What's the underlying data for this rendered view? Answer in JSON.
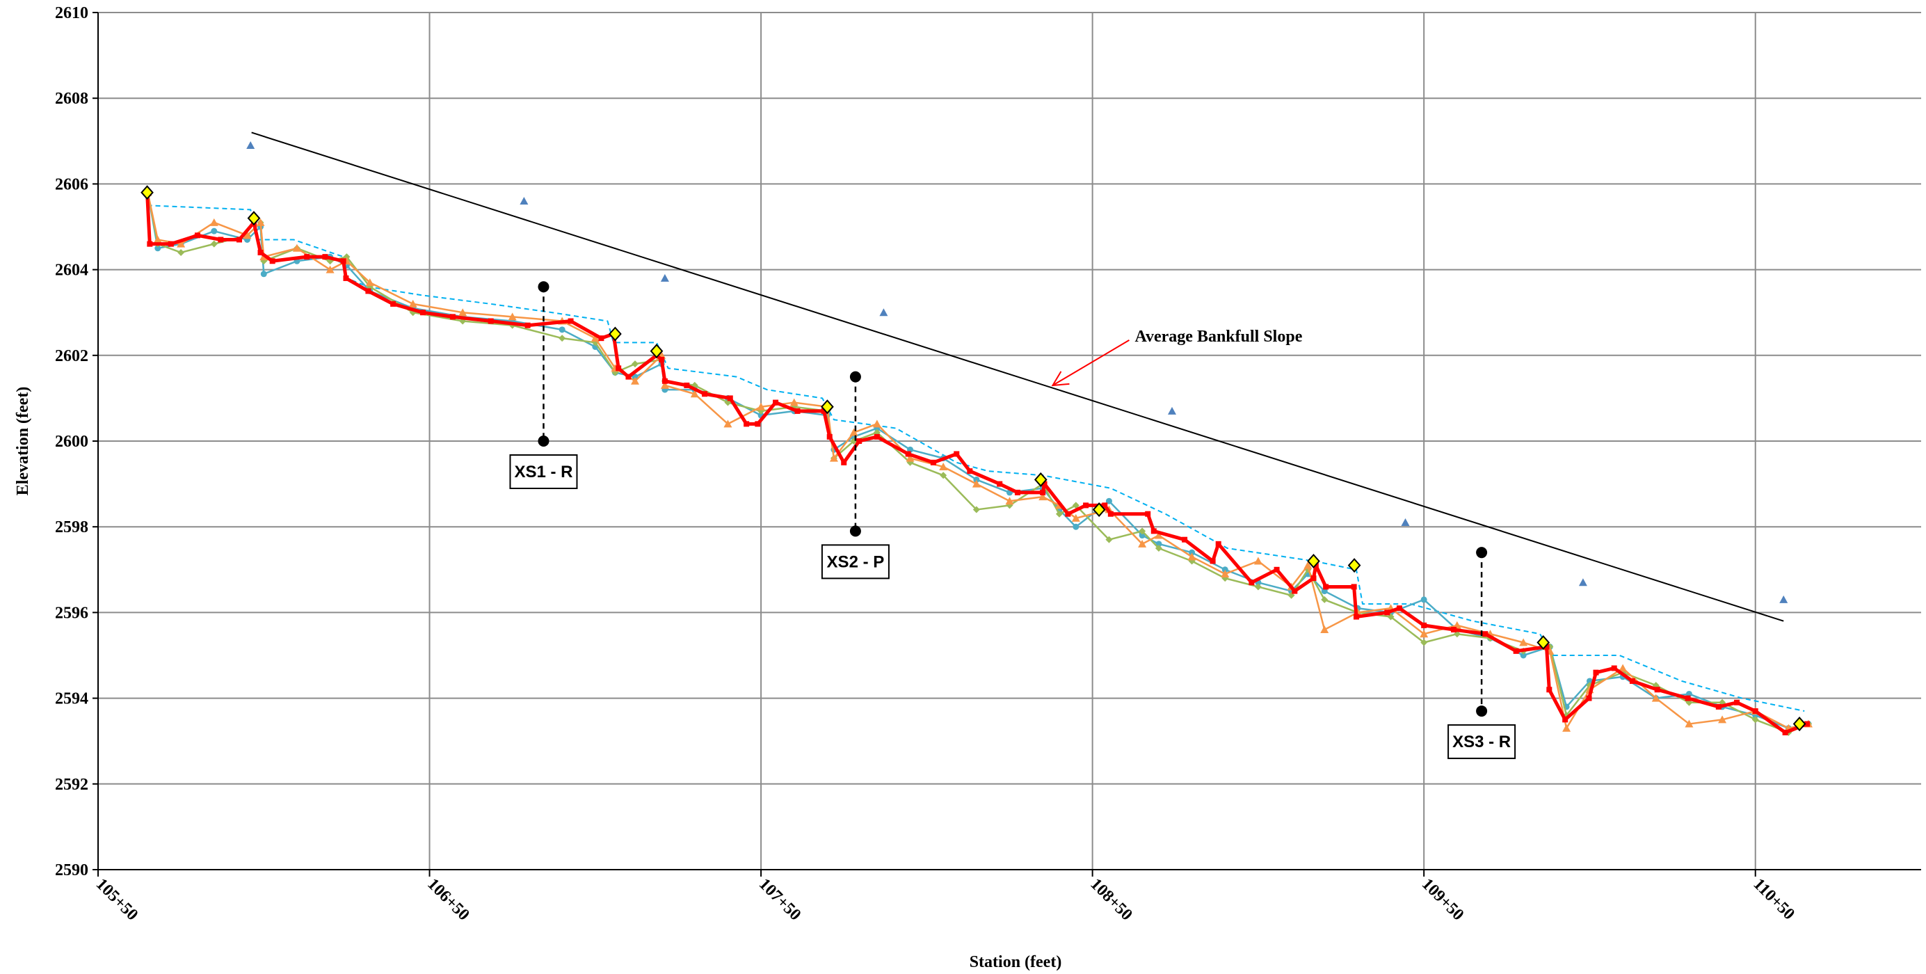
{
  "chart_data": {
    "type": "line",
    "x_label": "Station (feet)",
    "y_label": "Elevation (feet)",
    "xlim": [
      10550,
      11100
    ],
    "ylim": [
      2590,
      2610
    ],
    "xticks": [
      {
        "value": 10550,
        "label": "105+50"
      },
      {
        "value": 10650,
        "label": "106+50"
      },
      {
        "value": 10750,
        "label": "107+50"
      },
      {
        "value": 10850,
        "label": "108+50"
      },
      {
        "value": 10950,
        "label": "109+50"
      },
      {
        "value": 11050,
        "label": "110+50"
      }
    ],
    "yticks": [
      2590,
      2592,
      2594,
      2596,
      2598,
      2600,
      2602,
      2604,
      2606,
      2608,
      2610
    ],
    "grid": true,
    "series": [
      {
        "color": "#00b0f0",
        "dashed": true,
        "marker": "none",
        "line_width": 2,
        "x": [
          10564.8,
          10596,
          10598,
          10609,
          10624,
          10625,
          10631.5,
          10648,
          10668.5,
          10687,
          10703.7,
          10705.5,
          10718.5,
          10722,
          10742.6,
          10751.8,
          10768.5,
          10772,
          10790.7,
          10809,
          10818.5,
          10835,
          10855.5,
          10872,
          10890.7,
          10916.7,
          10929.6,
          10931.5,
          10946,
          10964.8,
          10985,
          10988.9,
          11009,
          11027.8,
          11046,
          11064.8
        ],
        "values": [
          2605.5,
          2605.4,
          2604.7,
          2604.7,
          2604.3,
          2603.8,
          2603.6,
          2603.4,
          2603.2,
          2603.0,
          2602.8,
          2602.3,
          2602.3,
          2601.7,
          2601.5,
          2601.2,
          2601.0,
          2600.5,
          2600.3,
          2599.5,
          2599.3,
          2599.2,
          2598.9,
          2598.3,
          2597.5,
          2597.2,
          2597.0,
          2596.2,
          2596.2,
          2595.8,
          2595.5,
          2595.0,
          2595.0,
          2594.4,
          2594.0,
          2593.7
        ]
      },
      {
        "color": "#4bacc6",
        "dashed": false,
        "marker": "circle",
        "line_width": 2.5,
        "x": [
          10565,
          10568,
          10575,
          10585,
          10595,
          10599,
          10600,
          10610,
          10620,
          10625,
          10632,
          10645,
          10660,
          10675,
          10690,
          10700,
          10706,
          10712,
          10720,
          10721,
          10730,
          10740,
          10750,
          10760,
          10770,
          10772,
          10778,
          10785,
          10795,
          10805,
          10815,
          10825,
          10835,
          10840,
          10845,
          10855,
          10865,
          10870,
          10880,
          10890,
          10900,
          10910,
          10915,
          10920,
          10930,
          10940,
          10950,
          10960,
          10970,
          10980,
          10988,
          10993,
          11000,
          11010,
          11020,
          11030,
          11040,
          11050,
          11060,
          11066
        ],
        "values": [
          2605.8,
          2604.5,
          2604.6,
          2604.9,
          2604.7,
          2605.0,
          2603.9,
          2604.2,
          2604.3,
          2604.1,
          2603.5,
          2603.1,
          2602.9,
          2602.8,
          2602.6,
          2602.2,
          2601.6,
          2601.5,
          2601.8,
          2601.2,
          2601.2,
          2601.0,
          2600.6,
          2600.7,
          2600.6,
          2599.8,
          2600.1,
          2600.3,
          2599.8,
          2599.6,
          2599.1,
          2598.8,
          2598.9,
          2598.4,
          2598.0,
          2598.6,
          2597.8,
          2597.6,
          2597.4,
          2597.0,
          2596.7,
          2596.5,
          2596.9,
          2596.5,
          2596.1,
          2596.0,
          2596.3,
          2595.6,
          2595.4,
          2595.0,
          2595.2,
          2593.8,
          2594.4,
          2594.5,
          2594.0,
          2594.1,
          2593.8,
          2593.6,
          2593.3,
          2593.4
        ]
      },
      {
        "color": "#9bbb59",
        "dashed": false,
        "marker": "diamond",
        "line_width": 2.5,
        "x": [
          10565,
          10568,
          10575,
          10585,
          10595,
          10599,
          10600,
          10610,
          10620,
          10625,
          10632,
          10645,
          10660,
          10675,
          10690,
          10700,
          10706,
          10712,
          10720,
          10721,
          10730,
          10740,
          10750,
          10760,
          10770,
          10772,
          10778,
          10785,
          10795,
          10805,
          10815,
          10825,
          10835,
          10840,
          10845,
          10855,
          10865,
          10870,
          10880,
          10890,
          10900,
          10910,
          10915,
          10920,
          10930,
          10940,
          10950,
          10960,
          10970,
          10980,
          10988,
          10993,
          11000,
          11010,
          11020,
          11030,
          11040,
          11050,
          11060,
          11066
        ],
        "values": [
          2605.8,
          2604.6,
          2604.4,
          2604.6,
          2604.8,
          2605.1,
          2604.2,
          2604.5,
          2604.2,
          2604.3,
          2603.6,
          2603.0,
          2602.8,
          2602.7,
          2602.4,
          2602.3,
          2601.6,
          2601.8,
          2601.9,
          2601.4,
          2601.3,
          2600.9,
          2600.7,
          2600.8,
          2600.7,
          2599.6,
          2600.0,
          2600.2,
          2599.5,
          2599.2,
          2598.4,
          2598.5,
          2599.0,
          2598.3,
          2598.5,
          2597.7,
          2597.9,
          2597.5,
          2597.2,
          2596.8,
          2596.6,
          2596.4,
          2597.0,
          2596.3,
          2596.0,
          2595.9,
          2595.3,
          2595.5,
          2595.4,
          2595.1,
          2595.2,
          2593.6,
          2594.3,
          2594.6,
          2594.3,
          2593.9,
          2593.9,
          2593.5,
          2593.2,
          2593.4
        ]
      },
      {
        "color": "#f79646",
        "dashed": false,
        "marker": "triangle",
        "line_width": 2.5,
        "x": [
          10565,
          10568,
          10575,
          10585,
          10595,
          10599,
          10600,
          10610,
          10620,
          10625,
          10632,
          10645,
          10660,
          10675,
          10690,
          10700,
          10706,
          10712,
          10720,
          10721,
          10730,
          10740,
          10750,
          10760,
          10770,
          10772,
          10778,
          10785,
          10795,
          10805,
          10815,
          10825,
          10835,
          10840,
          10845,
          10855,
          10865,
          10870,
          10880,
          10890,
          10900,
          10910,
          10915,
          10920,
          10930,
          10940,
          10950,
          10960,
          10970,
          10980,
          10988,
          10993,
          11000,
          11010,
          11020,
          11030,
          11040,
          11050,
          11060,
          11066
        ],
        "values": [
          2605.8,
          2604.7,
          2604.6,
          2605.1,
          2604.8,
          2605.1,
          2604.3,
          2604.5,
          2604.0,
          2604.2,
          2603.7,
          2603.2,
          2603.0,
          2602.9,
          2602.8,
          2602.4,
          2601.7,
          2601.4,
          2602.0,
          2601.3,
          2601.1,
          2600.4,
          2600.8,
          2600.9,
          2600.8,
          2599.6,
          2600.2,
          2600.4,
          2599.6,
          2599.4,
          2599.0,
          2598.6,
          2598.7,
          2598.5,
          2598.2,
          2598.4,
          2597.6,
          2597.8,
          2597.3,
          2596.9,
          2597.2,
          2596.6,
          2597.1,
          2595.6,
          2596.0,
          2596.1,
          2595.5,
          2595.7,
          2595.5,
          2595.3,
          2595.1,
          2593.3,
          2594.2,
          2594.7,
          2594.0,
          2593.4,
          2593.5,
          2593.7,
          2593.3,
          2593.4
        ]
      },
      {
        "color": "#ff0000",
        "dashed": false,
        "marker": "square",
        "line_width": 5,
        "x": [
          10564.8,
          10565.6,
          10572,
          10580,
          10587,
          10592.6,
          10597,
          10599,
          10602.6,
          10613,
          10618.5,
          10624,
          10624.8,
          10631.5,
          10639,
          10648,
          10657,
          10668.5,
          10679.6,
          10692.6,
          10701.8,
          10705.5,
          10707,
          10710,
          10718.5,
          10720,
          10721,
          10727.6,
          10733,
          10740.7,
          10745.6,
          10749,
          10754.4,
          10761,
          10769,
          10770.7,
          10775,
          10779.6,
          10785,
          10794.4,
          10802,
          10809,
          10813,
          10822,
          10827.4,
          10835,
          10835.5,
          10842.6,
          10848,
          10853.7,
          10855.5,
          10866.7,
          10868.5,
          10877.8,
          10886.3,
          10888,
          10898,
          10905.6,
          10911,
          10916.7,
          10917.4,
          10920.4,
          10928.9,
          10929.6,
          10938.9,
          10942.6,
          10950,
          10959,
          10968.5,
          10977.8,
          10987,
          10987.8,
          10992.6,
          10999.8,
          11001.9,
          11007.4,
          11012.9,
          11020.4,
          11029.6,
          11038.9,
          11044.4,
          11050,
          11059,
          11065.6
        ],
        "values": [
          2605.8,
          2604.6,
          2604.6,
          2604.8,
          2604.7,
          2604.7,
          2605.1,
          2604.4,
          2604.2,
          2604.3,
          2604.3,
          2604.2,
          2603.8,
          2603.5,
          2603.2,
          2603.0,
          2602.9,
          2602.8,
          2602.7,
          2602.8,
          2602.4,
          2602.5,
          2601.7,
          2601.5,
          2602.0,
          2601.9,
          2601.4,
          2601.3,
          2601.1,
          2601.0,
          2600.4,
          2600.4,
          2600.9,
          2600.7,
          2600.7,
          2600.1,
          2599.5,
          2600.0,
          2600.1,
          2599.7,
          2599.5,
          2599.7,
          2599.3,
          2599.0,
          2598.8,
          2598.8,
          2599.0,
          2598.3,
          2598.5,
          2598.5,
          2598.3,
          2598.3,
          2597.9,
          2597.7,
          2597.2,
          2597.6,
          2596.7,
          2597.0,
          2596.5,
          2596.8,
          2597.1,
          2596.6,
          2596.6,
          2595.9,
          2596.0,
          2596.1,
          2595.7,
          2595.6,
          2595.5,
          2595.1,
          2595.2,
          2594.2,
          2593.5,
          2594.0,
          2594.6,
          2594.7,
          2594.4,
          2594.2,
          2594.0,
          2593.8,
          2593.9,
          2593.7,
          2593.2,
          2593.4
        ]
      },
      {
        "color": "#4f81bd",
        "dashed": false,
        "marker": "triangle",
        "line_width": 0,
        "x": [
          10596,
          10678.5,
          10721,
          10787,
          10874,
          10944.4,
          10998,
          11058.5
        ],
        "values": [
          2606.9,
          2605.6,
          2603.8,
          2603.0,
          2600.7,
          2598.1,
          2596.7,
          2596.3
        ]
      },
      {
        "color": "#ffff00",
        "dashed": false,
        "marker": "big-diamond",
        "line_width": 0,
        "x": [
          10564.8,
          10597,
          10706,
          10718.5,
          10770,
          10834.4,
          10852,
          10916.7,
          10929,
          10986,
          11063.3
        ],
        "values": [
          2605.8,
          2605.2,
          2602.5,
          2602.1,
          2600.8,
          2599.1,
          2598.4,
          2597.2,
          2597.1,
          2595.3,
          2593.4
        ]
      },
      {
        "color": "#000000",
        "dashed": false,
        "marker": "none",
        "line_width": 2,
        "x": [
          10596.3,
          11058.5
        ],
        "values": [
          2607.2,
          2595.8
        ]
      }
    ],
    "annotation": {
      "text": "Average Bankfull Slope",
      "x": 10838,
      "y": 2601.3,
      "color": "#ff0000"
    },
    "cross_sections": [
      {
        "label": "XS1 - R",
        "x": 10684.4,
        "top": 2603.6,
        "bottom": 2600.0
      },
      {
        "label": "XS2 - P",
        "x": 10778.5,
        "top": 2601.5,
        "bottom": 2597.9
      },
      {
        "label": "XS3 - R",
        "x": 10967.4,
        "top": 2597.4,
        "bottom": 2593.7
      }
    ]
  }
}
